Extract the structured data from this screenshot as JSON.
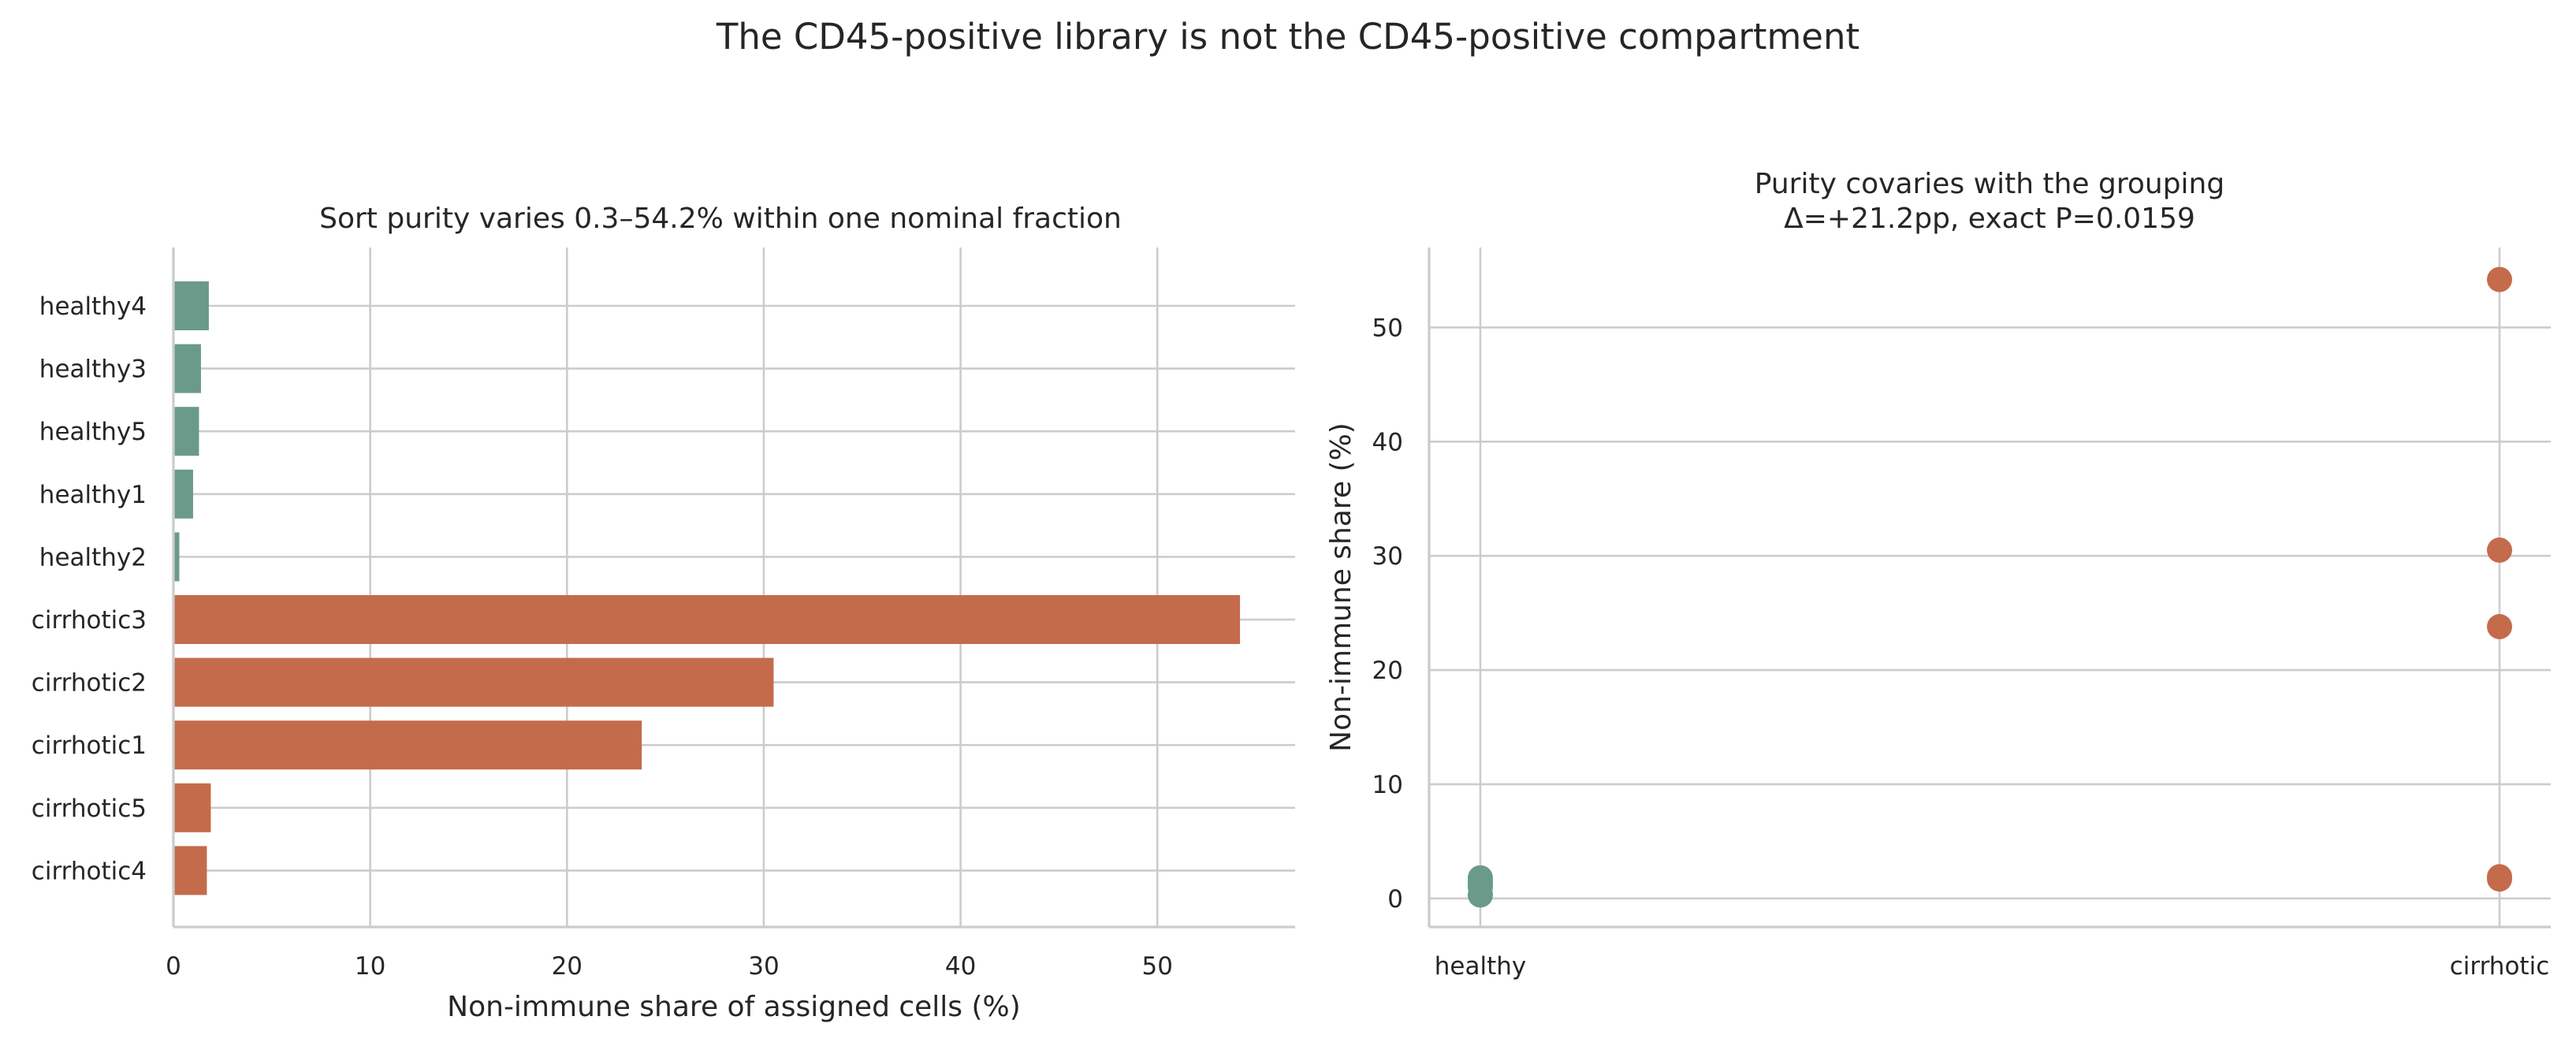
{
  "suptitle": "The CD45-positive library is not the CD45-positive compartment",
  "colors": {
    "healthy": "#6a9a8a",
    "cirrhotic": "#c46b4b"
  },
  "chart_data": [
    {
      "type": "bar",
      "orientation": "horizontal",
      "title": "Sort purity varies 0.3–54.2% within one nominal fraction",
      "xlabel": "Non-immune share of assigned cells (%)",
      "ylabel": "",
      "xlim": [
        0,
        57
      ],
      "xticks": [
        "0",
        "10",
        "20",
        "30",
        "40",
        "50"
      ],
      "categories": [
        "healthy4",
        "healthy3",
        "healthy5",
        "healthy1",
        "healthy2",
        "cirrhotic3",
        "cirrhotic2",
        "cirrhotic1",
        "cirrhotic5",
        "cirrhotic4"
      ],
      "values": [
        1.8,
        1.4,
        1.3,
        1.0,
        0.3,
        54.2,
        30.5,
        23.8,
        1.9,
        1.7
      ],
      "groups": [
        "healthy",
        "healthy",
        "healthy",
        "healthy",
        "healthy",
        "cirrhotic",
        "cirrhotic",
        "cirrhotic",
        "cirrhotic",
        "cirrhotic"
      ],
      "grid": true
    },
    {
      "type": "scatter",
      "title_line1": "Purity covaries with the grouping",
      "title_line2": "Δ=+21.2pp, exact P=0.0159",
      "xlabel": "",
      "ylabel": "Non-immune share (%)",
      "ylim": [
        -2.5,
        57
      ],
      "yticks": [
        "0",
        "10",
        "20",
        "30",
        "40",
        "50"
      ],
      "categories": [
        "healthy",
        "cirrhotic"
      ],
      "series": [
        {
          "group": "healthy",
          "values": [
            1.8,
            1.4,
            1.3,
            1.0,
            0.3
          ]
        },
        {
          "group": "cirrhotic",
          "values": [
            54.2,
            30.5,
            23.8,
            1.9,
            1.7
          ]
        }
      ],
      "grid": true
    }
  ]
}
